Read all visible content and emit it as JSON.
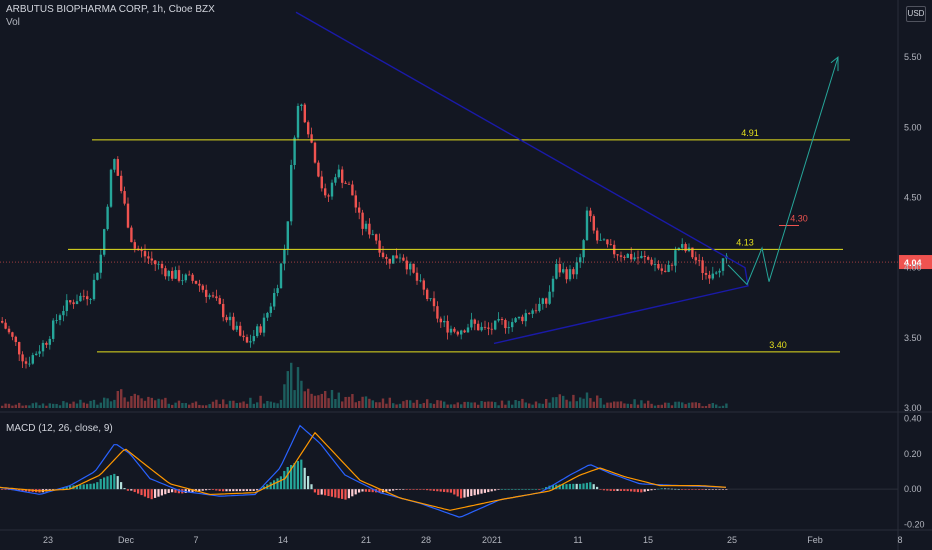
{
  "header": {
    "symbol_title": "ARBUTUS BIOPHARMA CORP, 1h, Cboe BZX",
    "volume_label": "Vol",
    "currency_button": "USD"
  },
  "macd_panel": {
    "label": "MACD (12, 26, close, 9)"
  },
  "colors": {
    "background": "#131722",
    "up": "#26a69a",
    "down": "#ef5350",
    "level_line": "#e5e01e",
    "trend_line": "#1a1aa8",
    "projection": "#26a69a",
    "macd_line": "#2962ff",
    "signal_line": "#ff9800",
    "price_tag": "#ef5350"
  },
  "chart_data": {
    "type": "candlestick",
    "price_axis": {
      "ylim": [
        3.0,
        5.85
      ],
      "ticks": [
        "5.50",
        "5.00",
        "4.50",
        "4.00",
        "3.50",
        "3.00"
      ],
      "current_price": "4.04"
    },
    "time_axis": {
      "labels": [
        "23",
        "Dec",
        "7",
        "14",
        "21",
        "28",
        "2021",
        "11",
        "15",
        "25",
        "Feb",
        "8"
      ]
    },
    "levels": [
      {
        "label": "4.91",
        "value": 4.91
      },
      {
        "label": "4.13",
        "value": 4.13
      },
      {
        "label": "3.40",
        "value": 3.4
      }
    ],
    "annotation": {
      "label": "4.30",
      "value": 4.3
    },
    "price_keypoints": [
      [
        0,
        3.62
      ],
      [
        15,
        3.45
      ],
      [
        25,
        3.32
      ],
      [
        45,
        3.48
      ],
      [
        60,
        3.7
      ],
      [
        75,
        3.78
      ],
      [
        90,
        3.82
      ],
      [
        100,
        4.1
      ],
      [
        112,
        4.8
      ],
      [
        120,
        4.55
      ],
      [
        132,
        4.15
      ],
      [
        150,
        4.05
      ],
      [
        170,
        3.95
      ],
      [
        195,
        3.9
      ],
      [
        215,
        3.75
      ],
      [
        235,
        3.55
      ],
      [
        245,
        3.45
      ],
      [
        262,
        3.6
      ],
      [
        275,
        3.85
      ],
      [
        285,
        4.2
      ],
      [
        292,
        4.9
      ],
      [
        298,
        5.2
      ],
      [
        305,
        5.05
      ],
      [
        315,
        4.75
      ],
      [
        325,
        4.45
      ],
      [
        335,
        4.7
      ],
      [
        350,
        4.55
      ],
      [
        360,
        4.3
      ],
      [
        372,
        4.25
      ],
      [
        385,
        4.05
      ],
      [
        400,
        4.1
      ],
      [
        412,
        3.95
      ],
      [
        425,
        3.8
      ],
      [
        440,
        3.6
      ],
      [
        455,
        3.55
      ],
      [
        470,
        3.6
      ],
      [
        485,
        3.55
      ],
      [
        500,
        3.6
      ],
      [
        515,
        3.62
      ],
      [
        530,
        3.7
      ],
      [
        545,
        3.75
      ],
      [
        555,
        4.0
      ],
      [
        568,
        3.95
      ],
      [
        580,
        4.05
      ],
      [
        586,
        4.4
      ],
      [
        595,
        4.2
      ],
      [
        610,
        4.12
      ],
      [
        630,
        4.08
      ],
      [
        650,
        4.05
      ],
      [
        665,
        3.95
      ],
      [
        677,
        4.15
      ],
      [
        690,
        4.1
      ],
      [
        705,
        3.95
      ],
      [
        718,
        4.02
      ],
      [
        728,
        4.05
      ]
    ],
    "volume_keypoints": [
      [
        0,
        0.03
      ],
      [
        50,
        0.04
      ],
      [
        95,
        0.06
      ],
      [
        110,
        0.14
      ],
      [
        125,
        0.12
      ],
      [
        140,
        0.08
      ],
      [
        190,
        0.05
      ],
      [
        240,
        0.06
      ],
      [
        280,
        0.1
      ],
      [
        292,
        0.35
      ],
      [
        300,
        0.22
      ],
      [
        315,
        0.14
      ],
      [
        340,
        0.12
      ],
      [
        370,
        0.08
      ],
      [
        420,
        0.06
      ],
      [
        500,
        0.05
      ],
      [
        550,
        0.08
      ],
      [
        585,
        0.12
      ],
      [
        600,
        0.07
      ],
      [
        650,
        0.05
      ],
      [
        728,
        0.03
      ]
    ],
    "macd": {
      "ylim": [
        -0.22,
        0.42
      ],
      "ticks": [
        "0.40",
        "0.20",
        "0.00",
        "-0.20"
      ],
      "macd_keypoints": [
        [
          0,
          0.01
        ],
        [
          40,
          -0.03
        ],
        [
          70,
          0.02
        ],
        [
          95,
          0.1
        ],
        [
          115,
          0.26
        ],
        [
          130,
          0.2
        ],
        [
          150,
          0.06
        ],
        [
          180,
          -0.01
        ],
        [
          220,
          -0.04
        ],
        [
          255,
          -0.03
        ],
        [
          280,
          0.12
        ],
        [
          300,
          0.36
        ],
        [
          320,
          0.26
        ],
        [
          345,
          0.08
        ],
        [
          380,
          -0.02
        ],
        [
          420,
          -0.08
        ],
        [
          460,
          -0.16
        ],
        [
          500,
          -0.06
        ],
        [
          540,
          -0.02
        ],
        [
          570,
          0.08
        ],
        [
          590,
          0.14
        ],
        [
          610,
          0.09
        ],
        [
          640,
          0.03
        ],
        [
          680,
          0.02
        ],
        [
          728,
          0.01
        ]
      ],
      "signal_keypoints": [
        [
          0,
          0.01
        ],
        [
          40,
          -0.01
        ],
        [
          70,
          0.0
        ],
        [
          100,
          0.08
        ],
        [
          125,
          0.23
        ],
        [
          145,
          0.14
        ],
        [
          170,
          0.03
        ],
        [
          210,
          -0.03
        ],
        [
          255,
          -0.02
        ],
        [
          285,
          0.06
        ],
        [
          315,
          0.32
        ],
        [
          335,
          0.2
        ],
        [
          360,
          0.05
        ],
        [
          400,
          -0.05
        ],
        [
          450,
          -0.12
        ],
        [
          500,
          -0.06
        ],
        [
          550,
          -0.01
        ],
        [
          580,
          0.08
        ],
        [
          600,
          0.12
        ],
        [
          625,
          0.07
        ],
        [
          660,
          0.02
        ],
        [
          700,
          0.02
        ],
        [
          728,
          0.01
        ]
      ]
    }
  }
}
